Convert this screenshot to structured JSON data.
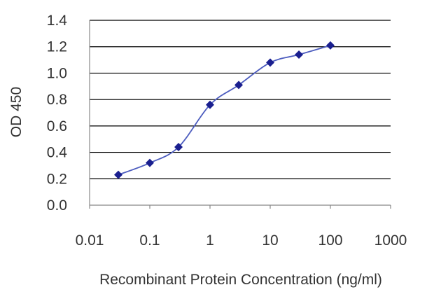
{
  "chart_data": {
    "type": "line",
    "title": "",
    "xlabel": "Recombinant Protein Concentration (ng/ml)",
    "ylabel": "OD 450",
    "x_scale": "log",
    "xlim": [
      0.01,
      1000
    ],
    "ylim": [
      0.0,
      1.4
    ],
    "x_ticks": [
      "0.01",
      "0.1",
      "1",
      "10",
      "100",
      "1000"
    ],
    "y_ticks": [
      "0.0",
      "0.2",
      "0.4",
      "0.6",
      "0.8",
      "1.0",
      "1.2",
      "1.4"
    ],
    "grid": "horizontal",
    "legend": "none",
    "series": [
      {
        "x": [
          0.03,
          0.1,
          0.3,
          1,
          3,
          10,
          30,
          100
        ],
        "y": [
          0.23,
          0.32,
          0.44,
          0.76,
          0.91,
          1.08,
          1.14,
          1.21
        ]
      }
    ],
    "colors": {
      "line": "#4d5dbf",
      "marker": "#1a1f8f",
      "grid": "#000000",
      "axis": "#888888",
      "text": "#333333"
    }
  }
}
